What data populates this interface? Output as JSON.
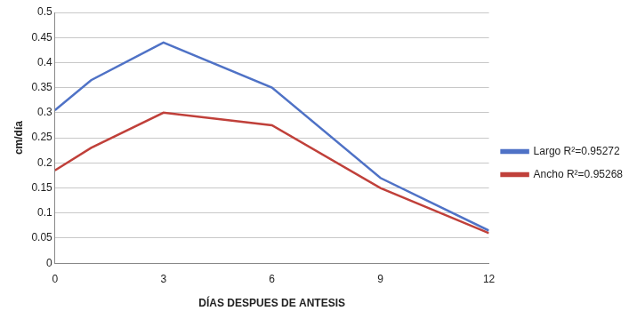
{
  "chart_data": {
    "type": "line",
    "x_label": "DÍAS DESPUES DE ANTESIS",
    "y_label": "cm/día",
    "x": [
      0,
      1,
      3,
      6,
      9,
      12
    ],
    "series": [
      {
        "name": "Largo R²=0.95272",
        "color": "#4f72c6",
        "values": [
          0.305,
          0.365,
          0.44,
          0.35,
          0.17,
          0.065
        ]
      },
      {
        "name": "Ancho R²=0.95268",
        "color": "#c0403a",
        "values": [
          0.185,
          0.23,
          0.3,
          0.275,
          0.15,
          0.06
        ]
      }
    ],
    "xlim": [
      0,
      12
    ],
    "xticks": [
      0,
      3,
      6,
      9,
      12
    ],
    "ylim": [
      0,
      0.5
    ],
    "yticks": [
      0,
      0.05,
      0.1,
      0.15,
      0.2,
      0.25,
      0.3,
      0.35,
      0.4,
      0.45,
      0.5
    ],
    "grid": true,
    "legend": "right"
  }
}
